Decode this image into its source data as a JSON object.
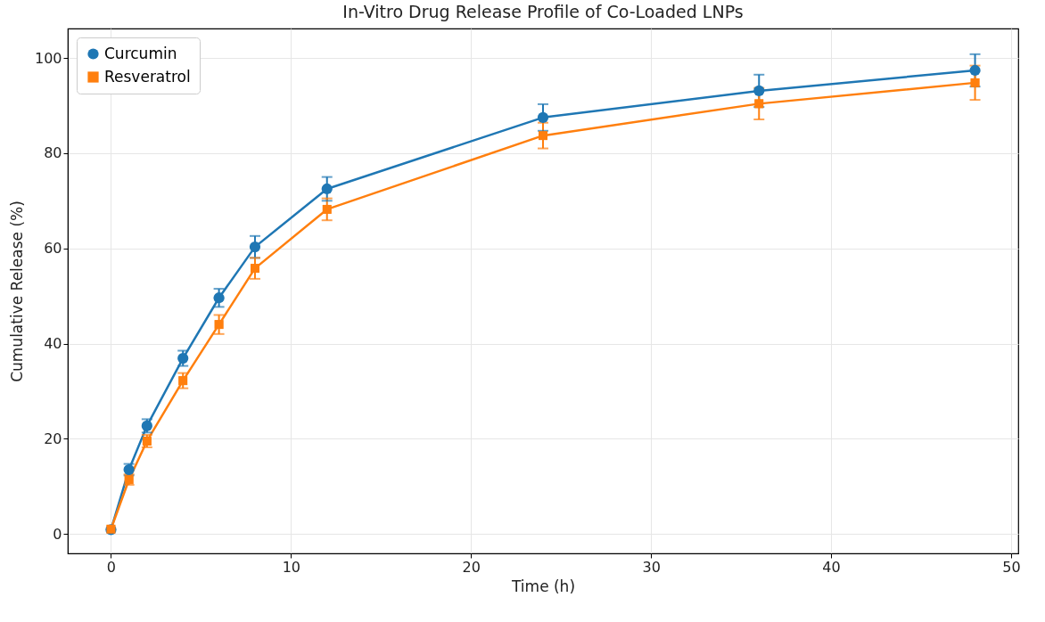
{
  "chart_data": {
    "type": "line",
    "title": "In-Vitro Drug Release Profile of Co-Loaded LNPs",
    "xlabel": "Time (h)",
    "ylabel": "Cumulative Release (%)",
    "x": [
      0,
      1,
      2,
      4,
      6,
      8,
      12,
      24,
      36,
      48
    ],
    "series": [
      {
        "name": "Curcumin",
        "color": "#1f77b4",
        "marker": "circle",
        "values": [
          0.9,
          13.5,
          22.7,
          36.9,
          49.6,
          60.3,
          72.5,
          87.5,
          93.1,
          97.4
        ],
        "errors": [
          null,
          1.2,
          1.4,
          1.6,
          1.9,
          2.3,
          2.5,
          2.8,
          3.4,
          3.4
        ]
      },
      {
        "name": "Resveratrol",
        "color": "#ff7f0e",
        "marker": "square",
        "values": [
          1.0,
          11.4,
          19.5,
          32.2,
          44.0,
          55.8,
          68.2,
          83.7,
          90.4,
          94.8
        ],
        "errors": [
          null,
          1.1,
          1.3,
          1.6,
          2.0,
          2.2,
          2.3,
          2.7,
          3.3,
          3.6
        ]
      }
    ],
    "xlim": [
      -2.4,
      50.4
    ],
    "xticks": [
      0,
      10,
      20,
      30,
      40,
      50
    ],
    "ylim": [
      -4.1,
      106.2
    ],
    "yticks": [
      0,
      20,
      40,
      60,
      80,
      100
    ],
    "grid": true,
    "legend": "top left",
    "line_style": "solid"
  }
}
